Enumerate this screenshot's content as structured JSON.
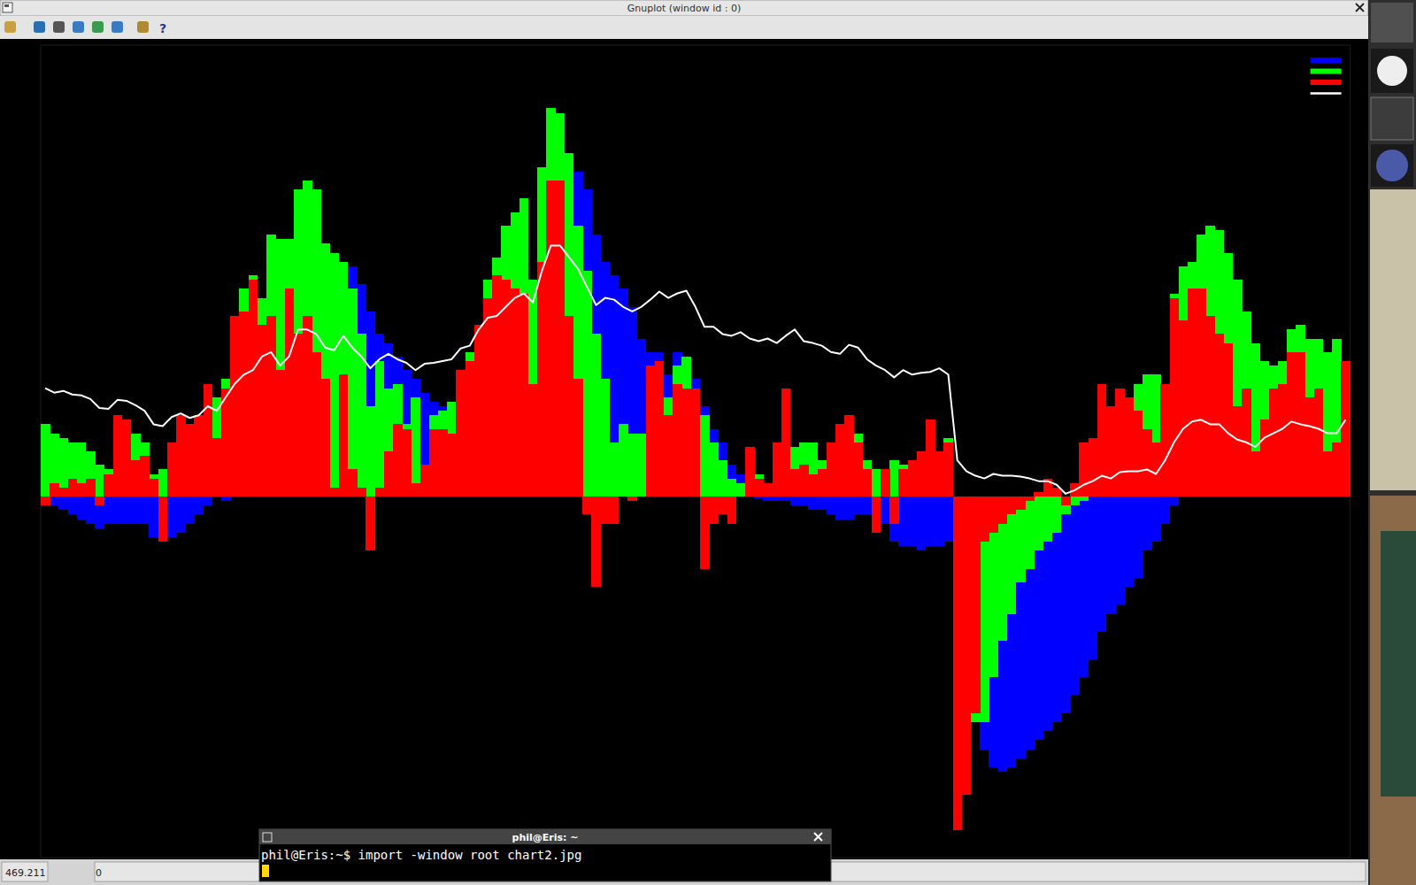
{
  "chart_data": {
    "type": "bar",
    "tick_labels": false,
    "legend": "top-right",
    "ylim": [
      -4,
      5
    ],
    "categories": [
      null,
      null,
      null,
      null,
      null,
      null,
      null,
      null,
      null,
      null,
      null,
      null,
      null,
      null,
      null,
      null,
      null,
      null,
      null,
      null,
      null,
      null,
      null,
      null,
      null,
      null,
      null,
      null,
      null,
      null,
      null,
      null,
      null,
      null,
      null,
      null,
      null,
      null,
      null,
      null,
      null,
      null,
      null,
      null,
      null,
      null,
      null,
      null,
      null,
      null,
      null,
      null,
      null,
      null,
      null,
      null,
      null,
      null,
      null,
      null,
      null,
      null,
      null,
      null,
      null,
      null,
      null,
      null,
      null,
      null,
      null,
      null,
      null,
      null,
      null,
      null,
      null,
      null,
      null,
      null,
      null,
      null,
      null,
      null,
      null,
      null,
      null,
      null,
      null,
      null,
      null,
      null,
      null,
      null,
      null,
      null,
      null,
      null,
      null,
      null,
      null,
      null,
      null,
      null,
      null,
      null,
      null,
      null,
      null,
      null,
      null,
      null,
      null,
      null,
      null,
      null,
      null,
      null,
      null,
      null,
      null,
      null,
      null,
      null,
      null,
      null,
      null,
      null,
      null,
      null,
      null,
      null,
      null,
      null,
      null,
      null,
      null,
      null,
      null,
      null,
      null,
      null,
      null,
      null,
      null
    ],
    "series": [
      {
        "color": "#0000ff",
        "values": [
          -0.05,
          -0.1,
          -0.15,
          -0.2,
          -0.25,
          -0.3,
          -0.35,
          -0.3,
          -0.3,
          -0.3,
          -0.3,
          -0.3,
          -0.45,
          -0.5,
          -0.45,
          -0.4,
          -0.3,
          -0.2,
          -0.1,
          0,
          -0.05,
          0.1,
          0.2,
          0.3,
          0.3,
          0.4,
          0.5,
          0.8,
          1.0,
          1.3,
          1.5,
          1.8,
          2.0,
          2.5,
          2.55,
          2.35,
          2.05,
          1.8,
          1.7,
          1.55,
          1.4,
          1.3,
          1.15,
          1.05,
          1.0,
          1.0,
          0.9,
          0.8,
          0.6,
          0.6,
          0.5,
          0.6,
          0.8,
          1.0,
          1.3,
          1.8,
          2.5,
          3.2,
          3.65,
          3.6,
          3.4,
          2.9,
          2.6,
          2.45,
          2.3,
          2.1,
          1.75,
          1.6,
          1.6,
          1.35,
          1.6,
          1.5,
          1.3,
          1.0,
          0.75,
          0.6,
          0.35,
          0.25,
          0.1,
          -0.02,
          -0.05,
          -0.05,
          -0.05,
          -0.1,
          -0.1,
          -0.15,
          -0.15,
          -0.2,
          -0.25,
          -0.25,
          -0.2,
          -0.2,
          -0.3,
          -0.3,
          -0.5,
          -0.55,
          -0.55,
          -0.6,
          -0.55,
          -0.55,
          -0.5,
          -0.1,
          -0.3,
          -1.5,
          -2.8,
          -3.0,
          -3.05,
          -3.0,
          -2.9,
          -2.8,
          -2.7,
          -2.6,
          -2.5,
          -2.4,
          -2.2,
          -2.0,
          -1.8,
          -1.5,
          -1.3,
          -1.2,
          -1.0,
          -0.9,
          -0.6,
          -0.5,
          -0.3,
          -0.1,
          0,
          0.1,
          0.3,
          0.4,
          0.4,
          0.5,
          0.6,
          0.6,
          0.7,
          0.7,
          0.7,
          0.7,
          0.8,
          0.8,
          0.8,
          0.8,
          0.7,
          0.7,
          0.7
        ]
      },
      {
        "color": "#00ff00",
        "values": [
          0.8,
          0.7,
          0.65,
          0.6,
          0.6,
          0.5,
          0.35,
          0.3,
          0.3,
          0.2,
          0.7,
          0.6,
          0.25,
          0.3,
          0.3,
          0.6,
          0.7,
          0.7,
          0.9,
          1.1,
          1.3,
          1.9,
          2.3,
          2.45,
          2.2,
          2.9,
          2.85,
          2.85,
          3.4,
          3.5,
          3.4,
          2.8,
          2.7,
          2.6,
          2.3,
          1.8,
          1.0,
          1.5,
          1.2,
          1.25,
          0.8,
          1.1,
          0.2,
          0.9,
          0.95,
          1.05,
          1.0,
          1.6,
          1.9,
          2.4,
          2.65,
          3.0,
          3.15,
          3.3,
          2.4,
          3.65,
          4.3,
          4.25,
          3.8,
          3.0,
          2.5,
          1.8,
          1.3,
          0.6,
          0.8,
          0.7,
          0.7,
          0.6,
          0.8,
          1.1,
          1.45,
          1.55,
          0.6,
          0.9,
          0.6,
          0.4,
          0.2,
          0.15,
          0.1,
          0.25,
          0.1,
          0.05,
          0.4,
          0.55,
          0.6,
          0.6,
          0.4,
          0.3,
          0.4,
          0.4,
          0.7,
          0.4,
          0.3,
          0.15,
          0.4,
          0.35,
          0.3,
          0.3,
          0.4,
          0.4,
          0.65,
          -0.05,
          -0.5,
          -2.5,
          -2.5,
          -2.0,
          -1.6,
          -1.3,
          -0.95,
          -0.8,
          -0.6,
          -0.5,
          -0.4,
          -0.2,
          -0.1,
          -0.05,
          0,
          0.1,
          0.2,
          0.3,
          1.1,
          1.25,
          1.35,
          1.35,
          0.9,
          2.25,
          2.55,
          2.6,
          2.9,
          3.0,
          2.95,
          2.7,
          2.4,
          2.05,
          1.7,
          1.5,
          1.45,
          1.5,
          1.85,
          1.9,
          1.75,
          1.75,
          1.6,
          1.75,
          1.5
        ]
      },
      {
        "color": "#ff0000",
        "values": [
          -0.1,
          0.15,
          0.1,
          0.2,
          0.15,
          0.2,
          -0.1,
          0.25,
          0.9,
          0.85,
          0.4,
          0.45,
          0.2,
          -0.5,
          0.6,
          0.9,
          0.8,
          0.9,
          1.25,
          0.65,
          1.2,
          2.0,
          2.05,
          2.4,
          1.9,
          2.0,
          1.4,
          2.3,
          1.8,
          2.0,
          1.6,
          1.3,
          0.1,
          1.35,
          0.3,
          0.1,
          -0.6,
          0.1,
          0.5,
          0.8,
          0.75,
          0.15,
          0.35,
          0.75,
          0.75,
          0.7,
          1.4,
          1.5,
          1.9,
          2.2,
          2.45,
          2.4,
          2.3,
          2.25,
          1.25,
          2.6,
          3.5,
          3.5,
          2.0,
          1.3,
          -0.2,
          -1.0,
          -0.3,
          -0.3,
          0,
          -0.05,
          0,
          1.45,
          1.5,
          0.9,
          1.25,
          1.2,
          1.2,
          -0.8,
          -0.3,
          -0.2,
          -0.3,
          0,
          0.55,
          0.2,
          0.15,
          0.6,
          1.2,
          0.3,
          0.35,
          0.25,
          0.3,
          0.6,
          0.8,
          0.9,
          0.6,
          0.3,
          -0.4,
          0.3,
          -0.3,
          0.3,
          0.4,
          0.5,
          0.85,
          0.5,
          0.6,
          -3.7,
          -3.3,
          -2.4,
          -0.5,
          -0.4,
          -0.3,
          -0.2,
          -0.15,
          -0.05,
          0.05,
          0.2,
          0.1,
          -0.1,
          0.15,
          0.6,
          0.65,
          1.25,
          1.0,
          1.2,
          1.1,
          0.95,
          0.75,
          0.6,
          1.25,
          2.2,
          1.95,
          2.3,
          2.3,
          2.0,
          1.8,
          1.7,
          1.0,
          1.2,
          0.5,
          0.85,
          1.2,
          1.25,
          1.6,
          1.6,
          1.1,
          1.2,
          0.5,
          0.6,
          1.5
        ]
      },
      {
        "type": "line",
        "color": "#ffffff",
        "values": [
          1.2,
          1.15,
          1.17,
          1.13,
          1.12,
          1.08,
          0.98,
          0.97,
          1.07,
          1.06,
          1.01,
          0.95,
          0.8,
          0.78,
          0.88,
          0.92,
          0.87,
          0.9,
          1.0,
          0.95,
          1.1,
          1.25,
          1.35,
          1.4,
          1.55,
          1.6,
          1.45,
          1.55,
          1.85,
          1.85,
          1.8,
          1.65,
          1.62,
          1.78,
          1.65,
          1.55,
          1.42,
          1.52,
          1.58,
          1.52,
          1.48,
          1.4,
          1.47,
          1.48,
          1.5,
          1.52,
          1.64,
          1.67,
          1.85,
          1.98,
          2.0,
          2.1,
          2.2,
          2.25,
          2.15,
          2.5,
          2.78,
          2.78,
          2.65,
          2.52,
          2.32,
          2.12,
          2.2,
          2.18,
          2.1,
          2.05,
          2.1,
          2.18,
          2.27,
          2.2,
          2.25,
          2.28,
          2.1,
          1.88,
          1.88,
          1.8,
          1.78,
          1.82,
          1.75,
          1.72,
          1.75,
          1.7,
          1.78,
          1.85,
          1.72,
          1.7,
          1.67,
          1.6,
          1.58,
          1.68,
          1.65,
          1.52,
          1.45,
          1.4,
          1.32,
          1.4,
          1.35,
          1.37,
          1.38,
          1.42,
          1.35,
          0.4,
          0.28,
          0.23,
          0.2,
          0.25,
          0.23,
          0.23,
          0.22,
          0.2,
          0.17,
          0.17,
          0.13,
          0.03,
          0.07,
          0.13,
          0.17,
          0.23,
          0.2,
          0.27,
          0.28,
          0.28,
          0.3,
          0.25,
          0.4,
          0.6,
          0.75,
          0.83,
          0.85,
          0.8,
          0.8,
          0.7,
          0.63,
          0.6,
          0.55,
          0.65,
          0.7,
          0.75,
          0.83,
          0.8,
          0.78,
          0.75,
          0.7,
          0.7,
          0.85
        ]
      }
    ]
  },
  "window": {
    "title": "Gnuplot (window id : 0)",
    "toolbar_help": "?",
    "status_left": "469.211",
    "status_right": "0"
  },
  "terminal": {
    "title": "phil@Eris: ~",
    "command": "phil@Eris:~$ import -window root chart2.jpg"
  }
}
